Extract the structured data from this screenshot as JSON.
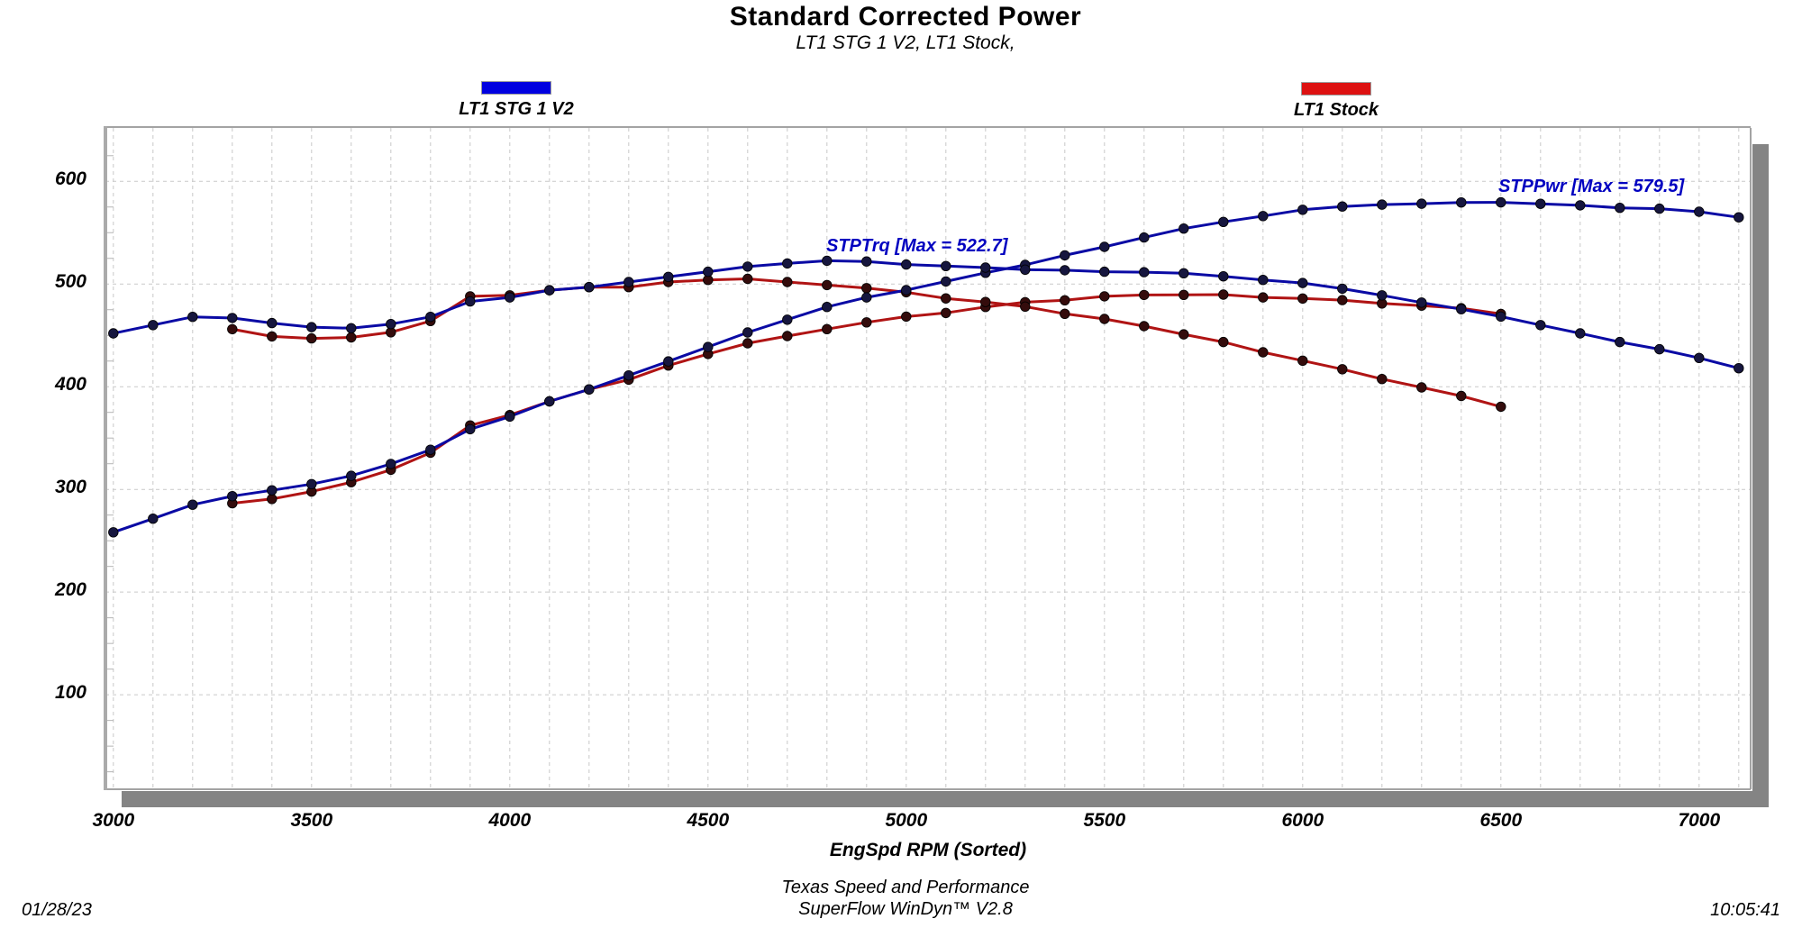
{
  "header": {
    "title": "Standard Corrected Power",
    "subtitle": "LT1 STG 1 V2, LT1 Stock,"
  },
  "legend": [
    {
      "label": "LT1 STG 1 V2",
      "color": "#0000e0"
    },
    {
      "label": "LT1 Stock",
      "color": "#dd1111"
    }
  ],
  "footer": {
    "xaxis_label": "EngSpd  RPM   (Sorted)",
    "company": "Texas Speed and Performance",
    "software": "SuperFlow WinDyn™ V2.8",
    "date": "01/28/23",
    "time": "10:05:41"
  },
  "chart_data": {
    "type": "line",
    "title": "Standard Corrected Power",
    "subtitle": "LT1 STG 1 V2, LT1 Stock,",
    "xlabel": "EngSpd RPM (Sorted)",
    "ylabel": "",
    "xlim": [
      2980,
      7130
    ],
    "ylim": [
      8,
      652
    ],
    "x_ticks": [
      3000,
      3500,
      4000,
      4500,
      5000,
      5500,
      6000,
      6500,
      7000
    ],
    "y_ticks": [
      100,
      200,
      300,
      400,
      500,
      600
    ],
    "x_minor_grid_step_rpm": 100,
    "y_minor_tick_step": 25,
    "grid": "dashed gray, vertical every 100 rpm, horizontal every 100",
    "legend_position": "top",
    "annotations": [
      {
        "text": "STPTrq [Max = 522.7]",
        "series": "LT1 STG 1 V2 STPTrq",
        "max": 522.7
      },
      {
        "text": "STPPwr [Max = 579.5]",
        "series": "LT1 STG 1 V2 STPPwr",
        "max": 579.5
      }
    ],
    "colors": {
      "blue_line": "#0a0aa4",
      "blue_marker": "#16163e",
      "red_line": "#b01414",
      "red_marker": "#340c0c",
      "annotation_blue": "#0000c0"
    },
    "series": [
      {
        "name": "LT1 STG 1 V2 STPPwr",
        "pen": "blue_line",
        "marker": "blue_marker",
        "max": 579.5,
        "x": [
          3000,
          3100,
          3200,
          3300,
          3400,
          3500,
          3600,
          3700,
          3800,
          3900,
          4000,
          4100,
          4200,
          4300,
          4400,
          4500,
          4600,
          4700,
          4800,
          4900,
          5000,
          5100,
          5200,
          5300,
          5400,
          5500,
          5600,
          5700,
          5800,
          5900,
          6000,
          6100,
          6200,
          6300,
          6400,
          6500,
          6600,
          6700,
          6800,
          6900,
          7000,
          7100
        ],
        "values": [
          258.2,
          271.5,
          285.1,
          293.4,
          299.1,
          305.2,
          313.2,
          324.8,
          338.6,
          358.6,
          370.9,
          385.7,
          397.4,
          411.0,
          424.7,
          438.7,
          452.8,
          465.3,
          477.7,
          487.0,
          494.1,
          502.5,
          510.9,
          518.6,
          527.9,
          536.2,
          545.3,
          554.0,
          560.5,
          566.2,
          572.3,
          575.5,
          577.3,
          578.2,
          579.4,
          579.5,
          578.1,
          576.6,
          574.2,
          573.4,
          570.4,
          565.0
        ]
      },
      {
        "name": "LT1 STG 1 V2 STPTrq",
        "pen": "blue_line",
        "marker": "blue_marker",
        "max": 522.7,
        "x": [
          3000,
          3100,
          3200,
          3300,
          3400,
          3500,
          3600,
          3700,
          3800,
          3900,
          4000,
          4100,
          4200,
          4300,
          4400,
          4500,
          4600,
          4700,
          4800,
          4900,
          5000,
          5100,
          5200,
          5300,
          5400,
          5500,
          5600,
          5700,
          5800,
          5900,
          6000,
          6100,
          6200,
          6300,
          6400,
          6500,
          6600,
          6700,
          6800,
          6900,
          7000,
          7100
        ],
        "values": [
          452,
          460,
          468,
          467,
          462,
          458,
          457,
          461,
          468,
          483,
          487,
          494,
          497,
          502,
          507,
          512,
          517,
          520,
          522.7,
          522,
          519,
          517.5,
          516,
          514,
          513.5,
          512,
          511.5,
          510.5,
          507.5,
          504,
          501,
          495.5,
          489,
          482,
          475.5,
          468.3,
          460,
          452,
          443.5,
          436.5,
          428,
          418
        ]
      },
      {
        "name": "LT1 Stock STPPwr",
        "pen": "red_line",
        "marker": "red_marker",
        "max": 489.7,
        "x": [
          3300,
          3400,
          3500,
          3600,
          3700,
          3800,
          3900,
          4000,
          4100,
          4200,
          4300,
          4400,
          4500,
          4600,
          4700,
          4800,
          4900,
          5000,
          5100,
          5200,
          5300,
          5400,
          5500,
          5600,
          5700,
          5800,
          5900,
          6000,
          6100,
          6200,
          6300,
          6400,
          6500
        ],
        "values": [
          286.5,
          290.7,
          297.9,
          307.0,
          319.1,
          335.7,
          362.3,
          372.4,
          385.7,
          397.4,
          406.9,
          420.6,
          431.9,
          442.3,
          449.3,
          456.1,
          462.7,
          468.3,
          471.9,
          477.7,
          482.3,
          484.2,
          488.0,
          489.3,
          489.4,
          489.7,
          487.0,
          485.9,
          484.3,
          481.1,
          479.0,
          476.4,
          470.9
        ]
      },
      {
        "name": "LT1 Stock STPTrq",
        "pen": "red_line",
        "marker": "red_marker",
        "max": 505,
        "x": [
          3300,
          3400,
          3500,
          3600,
          3700,
          3800,
          3900,
          4000,
          4100,
          4200,
          4300,
          4400,
          4500,
          4600,
          4700,
          4800,
          4900,
          5000,
          5100,
          5200,
          5300,
          5400,
          5500,
          5600,
          5700,
          5800,
          5900,
          6000,
          6100,
          6200,
          6300,
          6400,
          6500
        ],
        "values": [
          456,
          449,
          447,
          448,
          453,
          464,
          488,
          489,
          494,
          497,
          497,
          502,
          504,
          505,
          502,
          499,
          496,
          492,
          486,
          482.5,
          478,
          471,
          466,
          459,
          451,
          443.5,
          433.5,
          425.4,
          417,
          407.5,
          399.3,
          391,
          380.5
        ]
      }
    ]
  }
}
